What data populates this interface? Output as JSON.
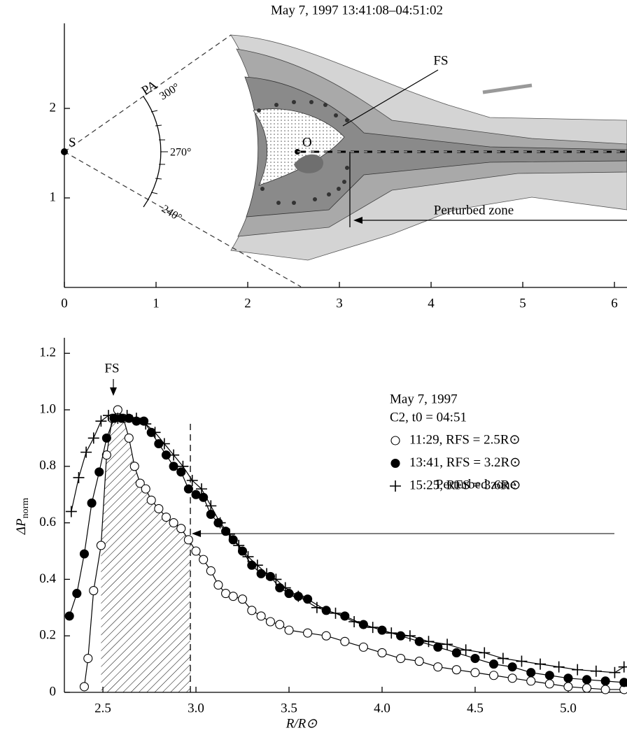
{
  "chart_data": [
    {
      "type": "contour",
      "title": "May 7, 1997  13:41:08–04:51:02",
      "xlim": [
        0,
        6.137
      ],
      "ylim": [
        0,
        2.95
      ],
      "xticks": [
        0,
        1,
        2,
        3,
        4,
        5,
        6
      ],
      "yticks": [
        1,
        2
      ],
      "annotations": [
        "S",
        "O",
        "FS",
        "PA",
        "300°",
        "270°",
        "240°",
        "Perturbed zone"
      ]
    },
    {
      "type": "scatter",
      "xlim": [
        2.293,
        5.316
      ],
      "ylim": [
        0,
        1.255
      ],
      "xticks": [
        2.5,
        {
          "value": 3,
          "label": "3.0"
        },
        3.5,
        {
          "value": 4,
          "label": "4.0"
        },
        4.5,
        {
          "value": 5,
          "label": "5.0"
        }
      ],
      "yticks": [
        0,
        0.2,
        0.4,
        0.6,
        0.8,
        {
          "value": 1,
          "label": "1.0"
        },
        1.2
      ],
      "x_label": "R/R⊙",
      "y_label": {
        "text": "ΔP",
        "subscript": "norm"
      },
      "legend_title": [
        "May 7, 1997",
        "C2, t0 = 04:51"
      ],
      "annotations": [
        "FS",
        "Perturbed zone"
      ],
      "shaded_region": [
        2.49,
        2.97
      ],
      "dashed_line_x": 2.97,
      "series": [
        {
          "name": "11:29, RFS = 2.5R⊙",
          "marker": "open-circle",
          "color": "#000000",
          "x": [
            2.4,
            2.42,
            2.45,
            2.49,
            2.52,
            2.55,
            2.58,
            2.61,
            2.64,
            2.67,
            2.7,
            2.73,
            2.76,
            2.8,
            2.84,
            2.88,
            2.92,
            2.96,
            3.0,
            3.04,
            3.08,
            3.12,
            3.16,
            3.2,
            3.25,
            3.3,
            3.35,
            3.4,
            3.45,
            3.5,
            3.6,
            3.7,
            3.8,
            3.9,
            4.0,
            4.1,
            4.2,
            4.3,
            4.4,
            4.5,
            4.6,
            4.7,
            4.8,
            4.9,
            5.0,
            5.1,
            5.2,
            5.3
          ],
          "values": [
            0.02,
            0.12,
            0.36,
            0.52,
            0.84,
            0.97,
            1.0,
            0.97,
            0.9,
            0.8,
            0.74,
            0.72,
            0.68,
            0.65,
            0.62,
            0.6,
            0.58,
            0.54,
            0.5,
            0.47,
            0.43,
            0.38,
            0.35,
            0.34,
            0.33,
            0.29,
            0.27,
            0.25,
            0.24,
            0.22,
            0.21,
            0.2,
            0.18,
            0.16,
            0.14,
            0.12,
            0.11,
            0.09,
            0.08,
            0.07,
            0.06,
            0.05,
            0.04,
            0.03,
            0.02,
            0.015,
            0.01,
            0.01
          ]
        },
        {
          "name": "13:41, RFS = 3.2R⊙",
          "marker": "filled-circle",
          "color": "#000000",
          "x": [
            2.32,
            2.36,
            2.4,
            2.44,
            2.48,
            2.52,
            2.56,
            2.6,
            2.64,
            2.68,
            2.72,
            2.76,
            2.8,
            2.84,
            2.88,
            2.92,
            2.96,
            3.0,
            3.04,
            3.08,
            3.12,
            3.16,
            3.2,
            3.25,
            3.3,
            3.35,
            3.4,
            3.45,
            3.5,
            3.55,
            3.6,
            3.7,
            3.8,
            3.9,
            4.0,
            4.1,
            4.2,
            4.3,
            4.4,
            4.5,
            4.6,
            4.7,
            4.8,
            4.9,
            5.0,
            5.1,
            5.2,
            5.3
          ],
          "values": [
            0.27,
            0.35,
            0.49,
            0.67,
            0.78,
            0.9,
            0.97,
            0.97,
            0.97,
            0.96,
            0.96,
            0.92,
            0.88,
            0.84,
            0.8,
            0.78,
            0.72,
            0.7,
            0.69,
            0.63,
            0.6,
            0.57,
            0.54,
            0.5,
            0.45,
            0.42,
            0.41,
            0.37,
            0.35,
            0.34,
            0.33,
            0.29,
            0.27,
            0.24,
            0.22,
            0.2,
            0.18,
            0.16,
            0.14,
            0.12,
            0.1,
            0.09,
            0.07,
            0.06,
            0.05,
            0.045,
            0.04,
            0.035
          ]
        },
        {
          "name": "15:25, RFS = 3.6R⊙",
          "marker": "plus",
          "color": "#000000",
          "x": [
            2.33,
            2.37,
            2.41,
            2.45,
            2.49,
            2.53,
            2.58,
            2.63,
            2.68,
            2.73,
            2.78,
            2.83,
            2.88,
            2.93,
            2.98,
            3.03,
            3.08,
            3.13,
            3.18,
            3.23,
            3.28,
            3.33,
            3.38,
            3.43,
            3.48,
            3.55,
            3.65,
            3.75,
            3.85,
            3.95,
            4.05,
            4.15,
            4.25,
            4.35,
            4.45,
            4.55,
            4.65,
            4.75,
            4.85,
            4.95,
            5.05,
            5.15,
            5.25,
            5.3
          ],
          "values": [
            0.64,
            0.76,
            0.85,
            0.9,
            0.96,
            0.98,
            0.97,
            0.98,
            0.97,
            0.95,
            0.92,
            0.88,
            0.84,
            0.8,
            0.75,
            0.72,
            0.66,
            0.6,
            0.56,
            0.52,
            0.48,
            0.45,
            0.42,
            0.4,
            0.37,
            0.34,
            0.3,
            0.28,
            0.25,
            0.23,
            0.21,
            0.2,
            0.18,
            0.17,
            0.15,
            0.14,
            0.12,
            0.11,
            0.1,
            0.09,
            0.08,
            0.075,
            0.07,
            0.09
          ]
        }
      ]
    }
  ]
}
